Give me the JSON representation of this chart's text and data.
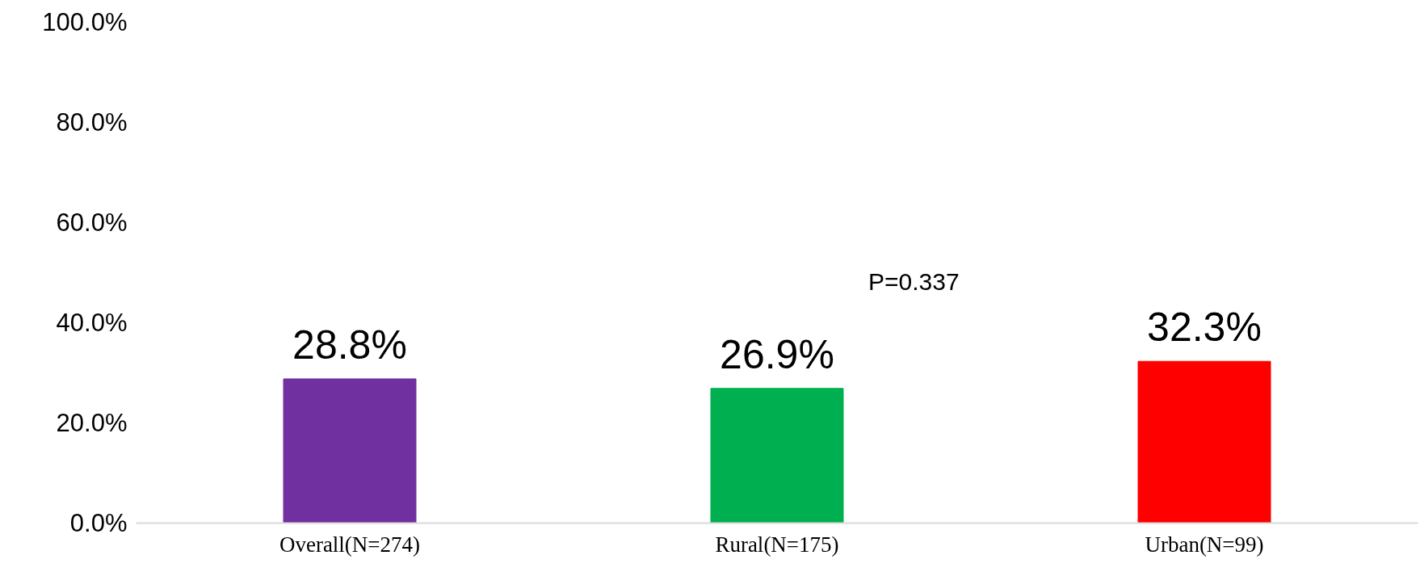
{
  "chart_data": {
    "type": "bar",
    "categories": [
      "Overall(N=274)",
      "Rural(N=175)",
      "Urban(N=99)"
    ],
    "values": [
      28.8,
      26.9,
      32.3
    ],
    "colors": [
      "#7030a0",
      "#00b050",
      "#ff0000"
    ],
    "value_labels": [
      "28.8%",
      "26.9%",
      "32.3%"
    ],
    "ylim": [
      0,
      100
    ],
    "yticks": [
      {
        "value": 0,
        "label": "0.0%"
      },
      {
        "value": 20,
        "label": "20.0%"
      },
      {
        "value": 40,
        "label": "40.0%"
      },
      {
        "value": 60,
        "label": "60.0%"
      },
      {
        "value": 80,
        "label": "80.0%"
      },
      {
        "value": 100,
        "label": "100.0%"
      }
    ],
    "annotations": [
      "P=0.337"
    ],
    "grid": false
  }
}
